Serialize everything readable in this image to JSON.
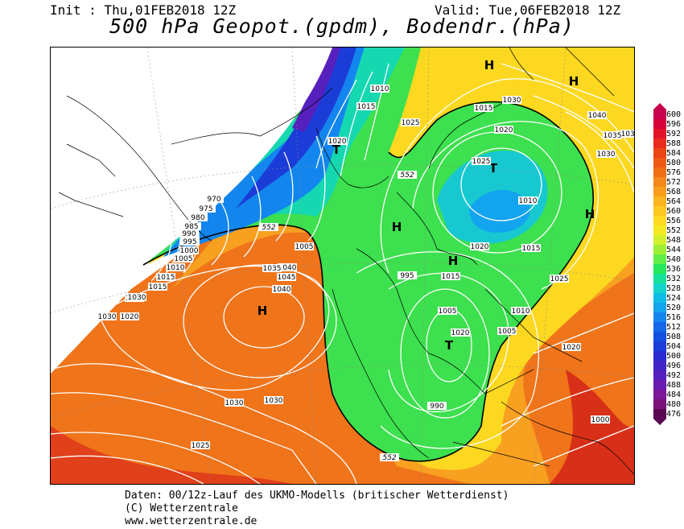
{
  "header": {
    "init": "Init : Thu,01FEB2018 12Z",
    "valid": "Valid: Tue,06FEB2018 12Z",
    "title": "500 hPa Geopot.(gpdm), Bodendr.(hPa)"
  },
  "footer": {
    "line1": "Daten: 00/12z-Lauf des UKMO-Modells (britischer Wetterdienst)",
    "line2": "(C) Wetterzentrale",
    "line3": "www.wetterzentrale.de"
  },
  "legend": {
    "values": [
      "600",
      "596",
      "592",
      "588",
      "584",
      "580",
      "576",
      "572",
      "568",
      "564",
      "560",
      "556",
      "552",
      "548",
      "544",
      "540",
      "536",
      "532",
      "528",
      "524",
      "520",
      "516",
      "512",
      "508",
      "504",
      "500",
      "496",
      "492",
      "488",
      "484",
      "480",
      "476"
    ],
    "colors": [
      "#c8004f",
      "#d6003a",
      "#e3122a",
      "#ea2a1c",
      "#ec4414",
      "#ee5a14",
      "#f07016",
      "#f4881a",
      "#f89e1c",
      "#fbb41e",
      "#fdc820",
      "#ffda22",
      "#f4ea24",
      "#d2f02c",
      "#9ef036",
      "#60ee48",
      "#22e85a",
      "#14e09a",
      "#12d4c8",
      "#10bce6",
      "#12a4ee",
      "#1286ee",
      "#1268e8",
      "#1450e0",
      "#1c3cd8",
      "#2a2ad0",
      "#4024c8",
      "#5620be",
      "#6a1cb0",
      "#7a1898",
      "#7a1278",
      "#5a0a52"
    ]
  },
  "map": {
    "region": "Europe / North Atlantic",
    "labels": {
      "highs": [
        "H",
        "H",
        "H",
        "H",
        "H"
      ],
      "lows": [
        "T",
        "T",
        "T"
      ]
    },
    "isobar_labels": [
      "1030",
      "1025",
      "1020",
      "1015",
      "1010",
      "1005",
      "1000",
      "995",
      "990",
      "985",
      "980",
      "975",
      "970",
      "1010",
      "1015",
      "1020",
      "1025",
      "1030",
      "1035",
      "1040",
      "1045",
      "1040",
      "1035",
      "1030",
      "1030",
      "1025",
      "1020",
      "1015",
      "1030",
      "1040",
      "1035",
      "1030",
      "1025",
      "1020",
      "1015",
      "1010",
      "1005",
      "1020",
      "1015",
      "1020",
      "1025",
      "1015",
      "1020",
      "1010",
      "1005",
      "995",
      "990",
      "1000",
      "1005"
    ],
    "geopot_labels": [
      "552",
      "552",
      "552",
      "552",
      "552"
    ]
  }
}
